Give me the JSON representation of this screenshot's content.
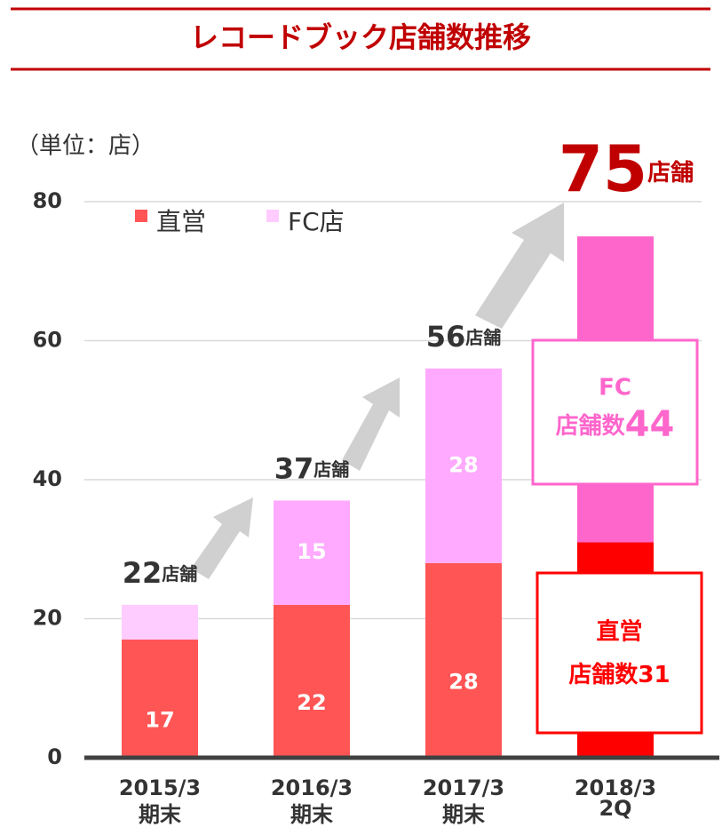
{
  "chart_data": {
    "type": "stacked_bar",
    "title": "レコードブック店舗数推移",
    "unit_label": "（単位：店）",
    "categories": [
      [
        "2015/3",
        "期末"
      ],
      [
        "2016/3",
        "期末"
      ],
      [
        "2017/3",
        "期末"
      ],
      [
        "2018/3",
        "2Q"
      ]
    ],
    "series": [
      {
        "name": "直営",
        "color": [
          "#ff5555",
          "#ff5555",
          "#ff5555",
          "#ff0000"
        ],
        "legend_color": "#ff5555",
        "values": [
          17,
          22,
          28,
          31
        ],
        "value_labels": [
          "17",
          "22",
          "28",
          null
        ]
      },
      {
        "name": "FC店",
        "color": [
          "#ffccff",
          "#ffaaff",
          "#ffaaff",
          "#ff66cc"
        ],
        "legend_color": "#ffccff",
        "values": [
          5,
          15,
          28,
          44
        ],
        "value_labels": [
          null,
          "15",
          "28",
          null
        ]
      }
    ],
    "totals": [
      "22",
      "37",
      "56",
      "75"
    ],
    "total_unit": "店舗",
    "callouts": [
      {
        "series": 1,
        "title": "FC",
        "prefix": "店舗数",
        "color": "#ff66cc"
      },
      {
        "series": 0,
        "title": "直営",
        "prefix": "店舗数",
        "color": "#ff0000"
      }
    ],
    "ylim": [
      0,
      80
    ],
    "yticks": [
      0,
      20,
      40,
      60,
      80
    ],
    "grid": true
  }
}
